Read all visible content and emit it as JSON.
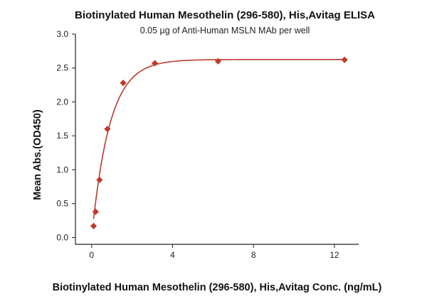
{
  "chart_data": {
    "type": "scatter",
    "title": "Biotinylated Human Mesothelin (296-580), His,Avitag ELISA",
    "subtitle": "0.05 µg of Anti-Human MSLN MAb per well",
    "xlabel": "Biotinylated Human Mesothelin (296-580), His,Avitag Conc. (ng/mL)",
    "ylabel": "Mean Abs.(OD450)",
    "xlim": [
      -0.8,
      13.2
    ],
    "ylim": [
      -0.1,
      3.0
    ],
    "xticks": [
      0,
      4,
      8,
      12
    ],
    "yticks": [
      0.0,
      0.5,
      1.0,
      1.5,
      2.0,
      2.5,
      3.0
    ],
    "xtick_labels": [
      "0",
      "4",
      "8",
      "12"
    ],
    "ytick_labels": [
      "0.0",
      "0.5",
      "1.0",
      "1.5",
      "2.0",
      "2.5",
      "3.0"
    ],
    "grid": false,
    "fit_curve": true,
    "marker_color": "#c0392b",
    "line_color": "#c0392b",
    "series": [
      {
        "x": [
          0.098,
          0.195,
          0.39,
          0.78,
          1.56,
          3.125,
          6.25,
          12.5
        ],
        "y": [
          0.17,
          0.38,
          0.85,
          1.6,
          2.28,
          2.57,
          2.6,
          2.62
        ]
      }
    ]
  }
}
